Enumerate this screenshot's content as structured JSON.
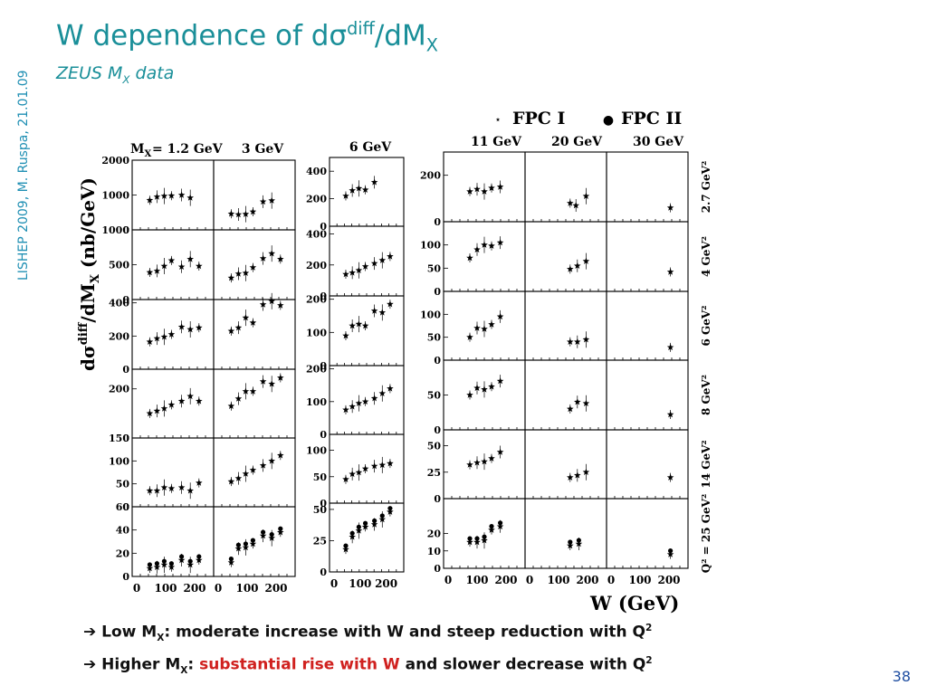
{
  "side_note": "LISHEP 2009, M. Ruspa, 21.01.09",
  "title": {
    "main": "W dependence of dσ",
    "sup": "diff",
    "mid": "/dM",
    "sub": "X"
  },
  "subtitle": {
    "main": "ZEUS M",
    "sub": "X",
    "rest": " data"
  },
  "legend": [
    {
      "symbol": "⋆",
      "label": "FPC I"
    },
    {
      "symbol": "●",
      "label": "FPC II"
    }
  ],
  "mx_prefix": "M",
  "mx_sub": "X",
  "column_headers": [
    "= 1.2 GeV",
    "3 GeV",
    "6 GeV",
    "11 GeV",
    "20 GeV",
    "30 GeV"
  ],
  "q2_labels": [
    "2.7 GeV²",
    "4 GeV²",
    "6 GeV²",
    "8 GeV²",
    "14 GeV²",
    "Q² = 25 GeV²"
  ],
  "y_axis_label": "dσdiff/dMX (nb/GeV)",
  "x_axis_label": "W (GeV)",
  "x_tick_labels": [
    "0",
    "100",
    "200"
  ],
  "bullets": [
    {
      "arrow": "➔",
      "text1": "Low M",
      "sub": "X",
      "text2": ": moderate increase with W and steep reduction with Q",
      "sup": "2"
    },
    {
      "arrow": "➔",
      "text1": "Higher M",
      "sub": "X",
      "text2": ": ",
      "red": "substantial rise with W",
      "text3": " and slower decrease with Q",
      "sup": "2"
    }
  ],
  "page_number": "38",
  "chart_data": {
    "type": "scatter",
    "x_unit": "W (GeV)",
    "xlim": [
      0,
      250
    ],
    "rows_q2": [
      "2.7 GeV²",
      "4 GeV²",
      "6 GeV²",
      "8 GeV²",
      "14 GeV²",
      "Q² = 25 GeV²"
    ],
    "columns_mx": [
      "1.2 GeV",
      "3 GeV",
      "6 GeV",
      "11 GeV",
      "20 GeV",
      "30 GeV"
    ],
    "series": [
      {
        "name": "FPC I",
        "symbol": "star"
      },
      {
        "name": "FPC II",
        "symbol": "dot"
      }
    ],
    "panels": [
      {
        "col": 0,
        "row": 0,
        "ylim": [
          0,
          2000
        ],
        "yticks": [
          1000,
          2000
        ],
        "x": [
          45,
          70,
          95,
          120,
          155,
          185
        ],
        "y": [
          850,
          950,
          970,
          980,
          1000,
          920
        ]
      },
      {
        "col": 1,
        "row": 0,
        "ylim": [
          0,
          2000
        ],
        "yticks": [],
        "x": [
          45,
          70,
          95,
          120,
          155,
          185
        ],
        "y": [
          460,
          440,
          450,
          520,
          810,
          840
        ]
      },
      {
        "col": 0,
        "row": 1,
        "ylim": [
          0,
          1000
        ],
        "yticks": [
          500,
          1000
        ],
        "x": [
          45,
          70,
          95,
          120,
          155,
          185,
          215
        ],
        "y": [
          390,
          410,
          480,
          560,
          470,
          580,
          480
        ]
      },
      {
        "col": 1,
        "row": 1,
        "ylim": [
          0,
          1000
        ],
        "yticks": [],
        "x": [
          45,
          70,
          95,
          120,
          155,
          185,
          215
        ],
        "y": [
          310,
          370,
          380,
          460,
          590,
          660,
          580
        ]
      },
      {
        "col": 0,
        "row": 2,
        "ylim": [
          0,
          420
        ],
        "yticks": [
          200,
          400
        ],
        "x": [
          45,
          70,
          95,
          120,
          155,
          185,
          215
        ],
        "y": [
          165,
          185,
          195,
          210,
          255,
          240,
          250
        ]
      },
      {
        "col": 1,
        "row": 2,
        "ylim": [
          0,
          420
        ],
        "yticks": [],
        "x": [
          45,
          70,
          95,
          120,
          155,
          185,
          215
        ],
        "y": [
          230,
          250,
          310,
          280,
          390,
          410,
          385
        ]
      },
      {
        "col": 0,
        "row": 3,
        "ylim": [
          0,
          280
        ],
        "yticks": [
          200
        ],
        "x": [
          45,
          70,
          95,
          120,
          155,
          185,
          215
        ],
        "y": [
          100,
          110,
          120,
          135,
          150,
          170,
          150
        ]
      },
      {
        "col": 1,
        "row": 3,
        "ylim": [
          0,
          280
        ],
        "yticks": [],
        "x": [
          45,
          70,
          95,
          120,
          155,
          185,
          215
        ],
        "y": [
          130,
          160,
          190,
          190,
          230,
          220,
          245
        ]
      },
      {
        "col": 0,
        "row": 4,
        "ylim": [
          0,
          150
        ],
        "yticks": [
          50,
          100,
          150
        ],
        "x": [
          45,
          70,
          95,
          120,
          155,
          185,
          215
        ],
        "y": [
          35,
          35,
          42,
          40,
          42,
          35,
          52
        ]
      },
      {
        "col": 1,
        "row": 4,
        "ylim": [
          0,
          150
        ],
        "yticks": [],
        "x": [
          45,
          70,
          95,
          120,
          155,
          185,
          215
        ],
        "y": [
          55,
          62,
          72,
          80,
          90,
          100,
          112
        ]
      },
      {
        "col": 0,
        "row": 5,
        "ylim": [
          0,
          60
        ],
        "yticks": [
          20,
          40,
          60
        ],
        "x": [
          45,
          70,
          95,
          120,
          155,
          185,
          215
        ],
        "y": [
          7,
          8,
          10,
          8,
          14,
          10,
          14
        ]
      },
      {
        "col": 1,
        "row": 5,
        "ylim": [
          0,
          60
        ],
        "yticks": [],
        "x": [
          45,
          70,
          95,
          120,
          155,
          185,
          215
        ],
        "y": [
          12,
          24,
          25,
          28,
          35,
          33,
          38
        ]
      },
      {
        "col": 2,
        "row": 0,
        "ylim": [
          0,
          500
        ],
        "yticks": [
          200,
          400
        ],
        "x": [
          45,
          70,
          95,
          120,
          155
        ],
        "y": [
          220,
          260,
          275,
          265,
          320
        ]
      },
      {
        "col": 2,
        "row": 1,
        "ylim": [
          0,
          450
        ],
        "yticks": [
          200,
          400
        ],
        "x": [
          45,
          70,
          95,
          120,
          155,
          185,
          215
        ],
        "y": [
          140,
          150,
          165,
          190,
          210,
          230,
          255
        ]
      },
      {
        "col": 2,
        "row": 2,
        "ylim": [
          0,
          210
        ],
        "yticks": [
          100,
          200
        ],
        "x": [
          45,
          70,
          95,
          120,
          155,
          185,
          215
        ],
        "y": [
          90,
          120,
          125,
          120,
          165,
          160,
          185
        ]
      },
      {
        "col": 2,
        "row": 3,
        "ylim": [
          0,
          210
        ],
        "yticks": [
          100,
          200
        ],
        "x": [
          45,
          70,
          95,
          120,
          155,
          185,
          215
        ],
        "y": [
          75,
          85,
          95,
          100,
          110,
          125,
          140
        ]
      },
      {
        "col": 2,
        "row": 4,
        "ylim": [
          0,
          130
        ],
        "yticks": [
          50,
          100
        ],
        "x": [
          45,
          70,
          95,
          120,
          155,
          185,
          215
        ],
        "y": [
          45,
          55,
          58,
          65,
          70,
          72,
          75
        ]
      },
      {
        "col": 2,
        "row": 5,
        "ylim": [
          0,
          55
        ],
        "yticks": [
          25,
          50
        ],
        "x": [
          45,
          70,
          95,
          120,
          155,
          185,
          215
        ],
        "y": [
          18,
          28,
          33,
          36,
          38,
          42,
          48
        ]
      },
      {
        "col": 3,
        "row": 0,
        "ylim": [
          0,
          300
        ],
        "yticks": [
          200
        ],
        "x": [
          75,
          100,
          125,
          150,
          180
        ],
        "y": [
          130,
          140,
          130,
          145,
          150
        ]
      },
      {
        "col": 4,
        "row": 0,
        "ylim": [
          0,
          300
        ],
        "yticks": [],
        "x": [
          140,
          160,
          195
        ],
        "y": [
          80,
          70,
          110
        ]
      },
      {
        "col": 5,
        "row": 0,
        "ylim": [
          0,
          300
        ],
        "yticks": [],
        "x": [
          205
        ],
        "y": [
          60
        ]
      },
      {
        "col": 3,
        "row": 1,
        "ylim": [
          0,
          150
        ],
        "yticks": [
          50,
          100
        ],
        "x": [
          75,
          100,
          125,
          150,
          180
        ],
        "y": [
          72,
          90,
          100,
          98,
          105
        ]
      },
      {
        "col": 4,
        "row": 1,
        "ylim": [
          0,
          150
        ],
        "yticks": [],
        "x": [
          140,
          165,
          195
        ],
        "y": [
          48,
          55,
          65
        ]
      },
      {
        "col": 5,
        "row": 1,
        "ylim": [
          0,
          150
        ],
        "yticks": [],
        "x": [
          205
        ],
        "y": [
          42
        ]
      },
      {
        "col": 3,
        "row": 2,
        "ylim": [
          0,
          150
        ],
        "yticks": [
          50,
          100
        ],
        "x": [
          75,
          100,
          125,
          150,
          180
        ],
        "y": [
          50,
          70,
          68,
          78,
          95
        ]
      },
      {
        "col": 4,
        "row": 2,
        "ylim": [
          0,
          150
        ],
        "yticks": [],
        "x": [
          140,
          165,
          195
        ],
        "y": [
          40,
          40,
          45
        ]
      },
      {
        "col": 5,
        "row": 2,
        "ylim": [
          0,
          150
        ],
        "yticks": [],
        "x": [
          205
        ],
        "y": [
          28
        ]
      },
      {
        "col": 3,
        "row": 3,
        "ylim": [
          0,
          100
        ],
        "yticks": [
          50
        ],
        "x": [
          75,
          100,
          125,
          150,
          180
        ],
        "y": [
          50,
          60,
          58,
          62,
          70
        ]
      },
      {
        "col": 4,
        "row": 3,
        "ylim": [
          0,
          100
        ],
        "yticks": [],
        "x": [
          140,
          165,
          195
        ],
        "y": [
          30,
          40,
          38
        ]
      },
      {
        "col": 5,
        "row": 3,
        "ylim": [
          0,
          100
        ],
        "yticks": [],
        "x": [
          205
        ],
        "y": [
          22
        ]
      },
      {
        "col": 3,
        "row": 4,
        "ylim": [
          0,
          65
        ],
        "yticks": [
          25,
          50
        ],
        "x": [
          75,
          100,
          125,
          150,
          180
        ],
        "y": [
          32,
          34,
          35,
          38,
          44
        ]
      },
      {
        "col": 4,
        "row": 4,
        "ylim": [
          0,
          65
        ],
        "yticks": [],
        "x": [
          140,
          165,
          195
        ],
        "y": [
          20,
          22,
          25
        ]
      },
      {
        "col": 5,
        "row": 4,
        "ylim": [
          0,
          65
        ],
        "yticks": [],
        "x": [
          205
        ],
        "y": [
          20
        ]
      },
      {
        "col": 3,
        "row": 5,
        "ylim": [
          0,
          40
        ],
        "yticks": [
          10,
          20
        ],
        "x": [
          75,
          100,
          125,
          150,
          180
        ],
        "y": [
          15,
          15,
          16,
          22,
          24
        ]
      },
      {
        "col": 4,
        "row": 5,
        "ylim": [
          0,
          40
        ],
        "yticks": [],
        "x": [
          140,
          170
        ],
        "y": [
          13,
          14
        ]
      },
      {
        "col": 5,
        "row": 5,
        "ylim": [
          0,
          40
        ],
        "yticks": [],
        "x": [
          205
        ],
        "y": [
          8
        ]
      }
    ]
  }
}
